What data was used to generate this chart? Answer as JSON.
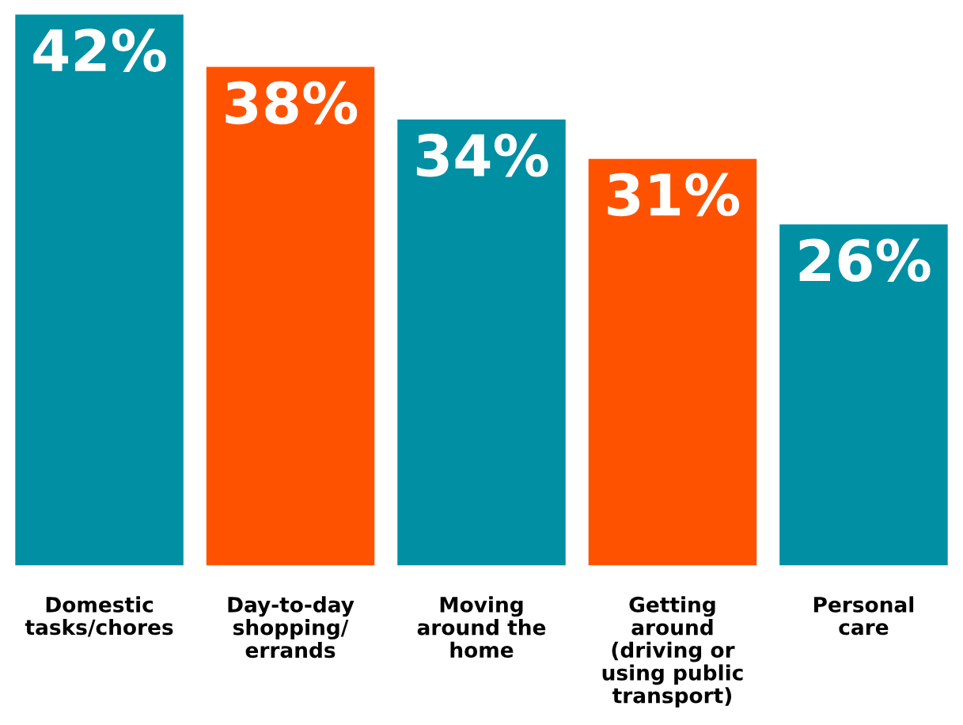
{
  "chart_data": {
    "type": "bar",
    "categories": [
      "Domestic\ntasks/chores",
      "Day-to-day\nshopping/\nerrands",
      "Moving\naround the\nhome",
      "Getting\naround\n(driving or\nusing public\ntransport)",
      "Personal\ncare"
    ],
    "values": [
      42,
      38,
      34,
      31,
      26
    ],
    "colors": [
      "#008fa3",
      "#ff5200",
      "#008fa3",
      "#ff5200",
      "#008fa3"
    ],
    "value_labels": [
      "42%",
      "38%",
      "34%",
      "31%",
      "26%"
    ],
    "grid": false,
    "legend": false
  }
}
